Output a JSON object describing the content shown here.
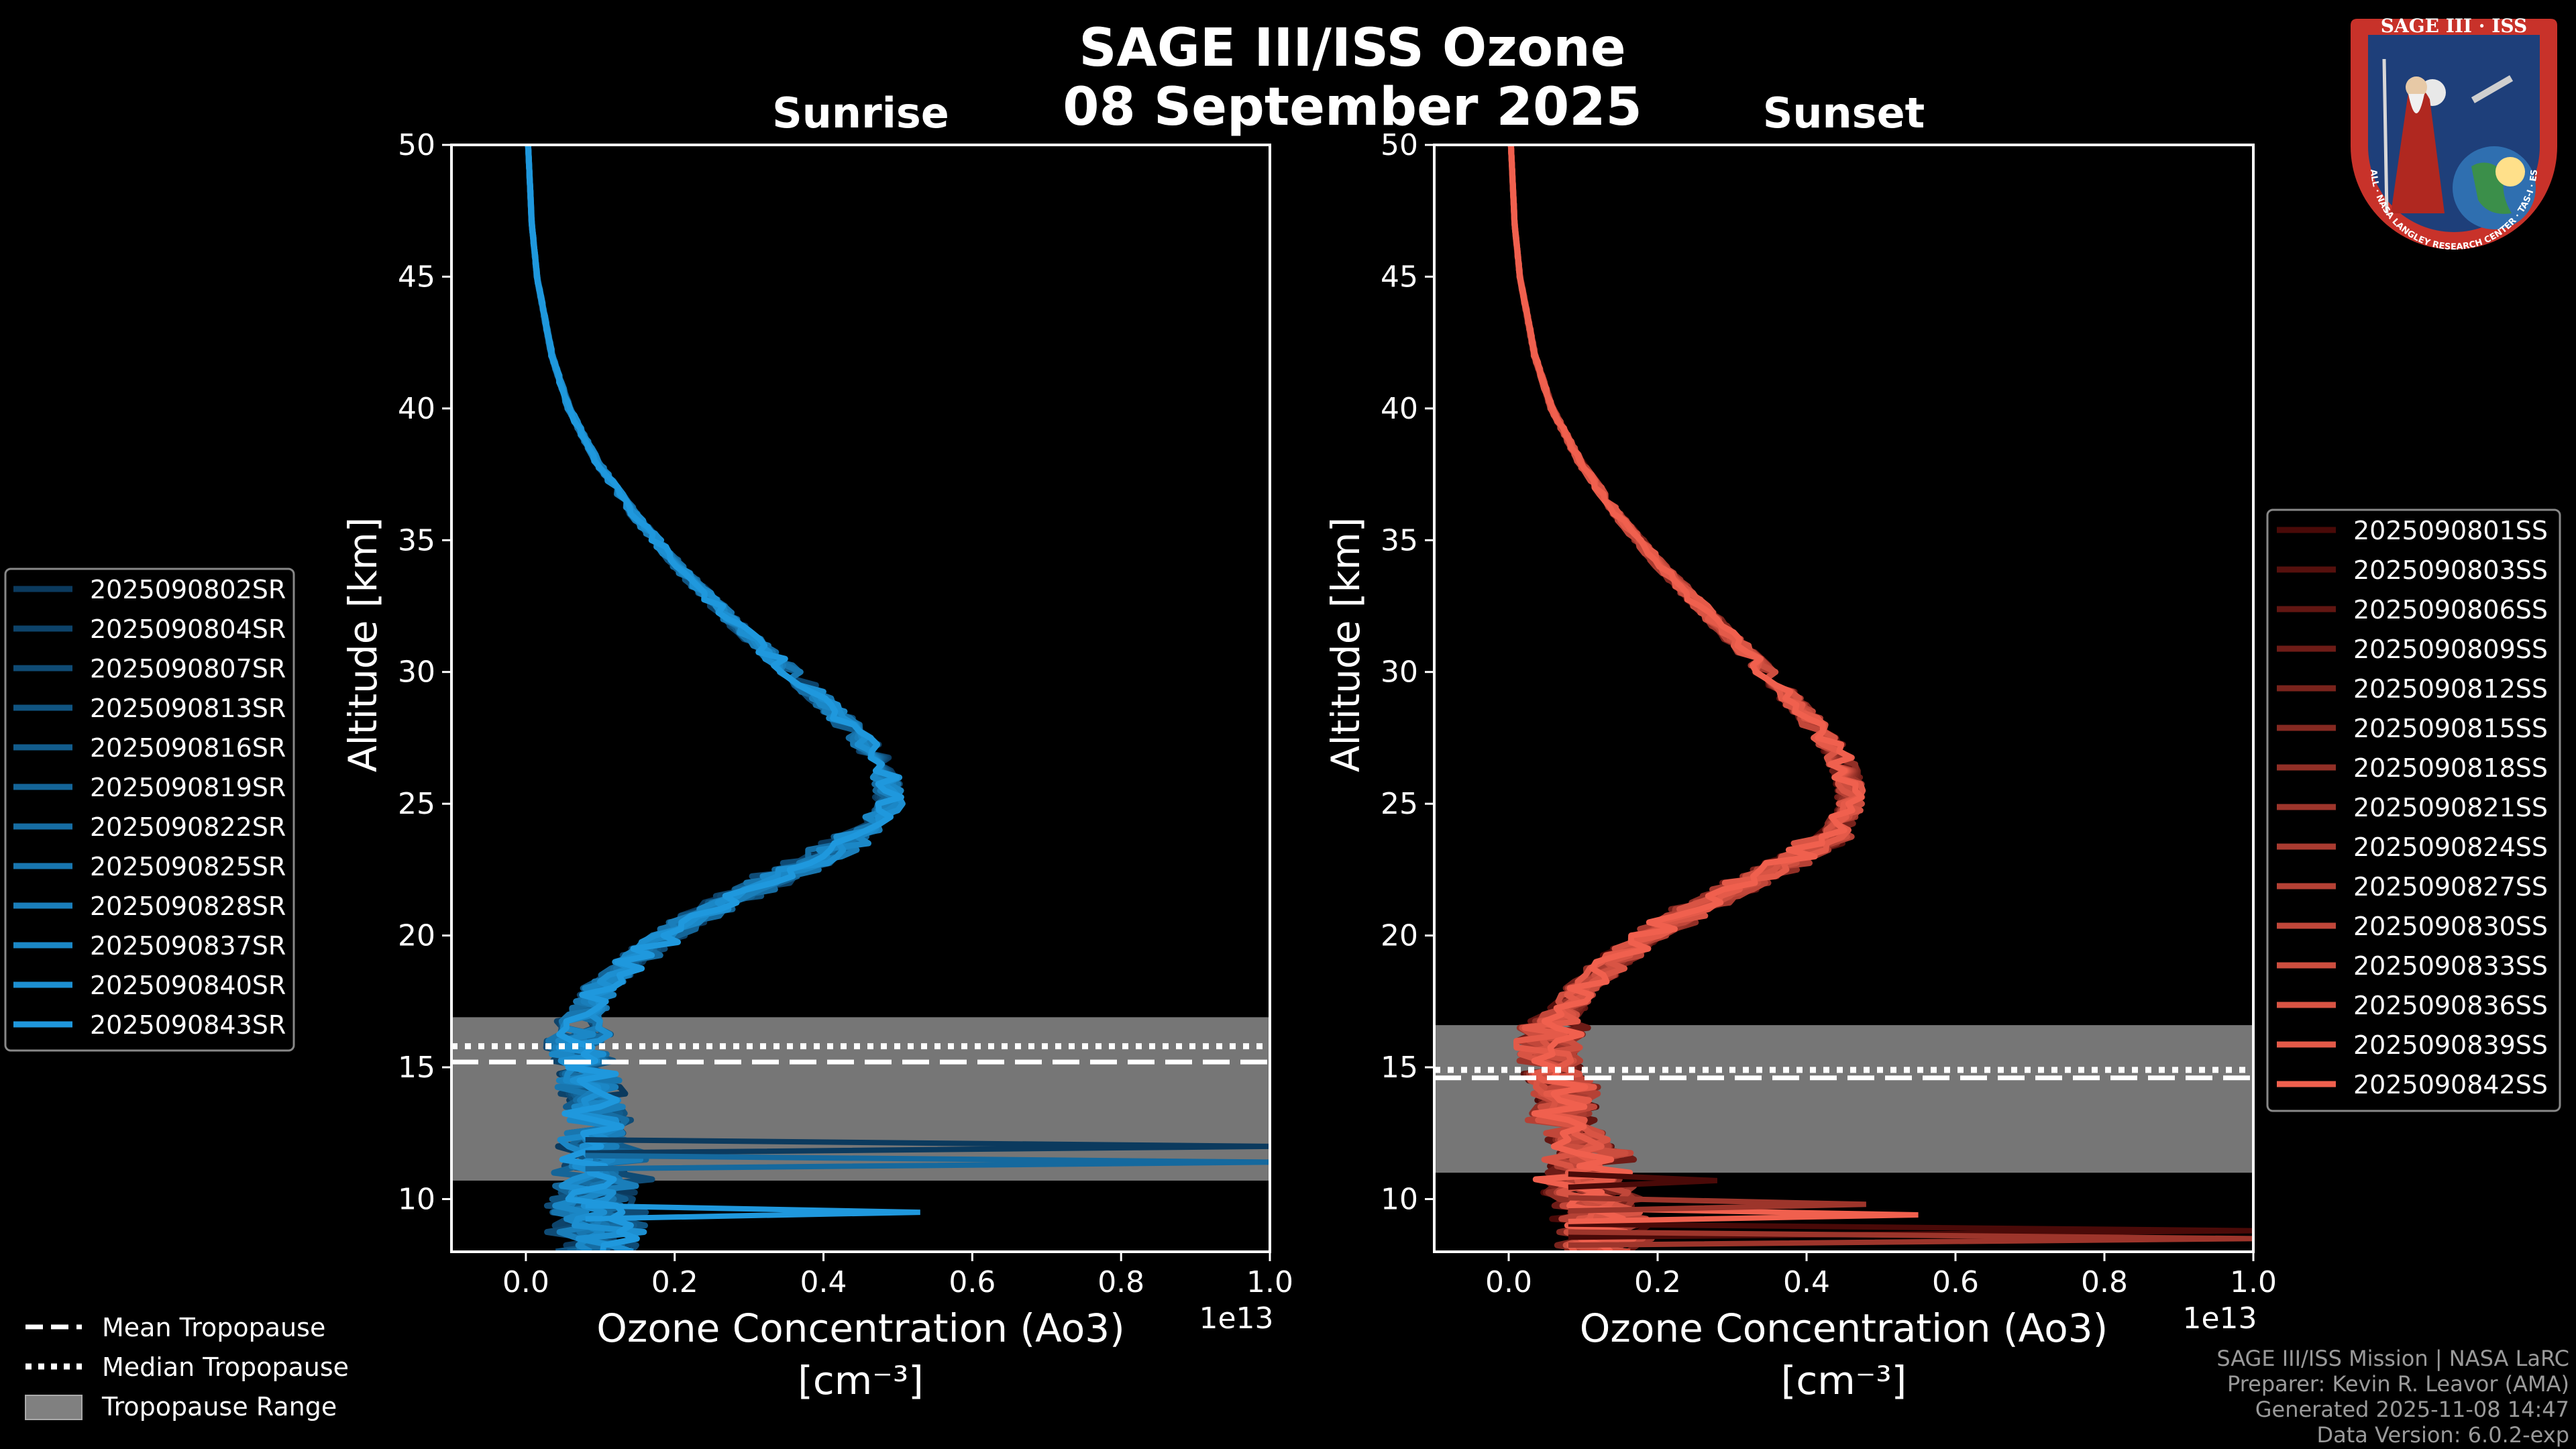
{
  "title": "SAGE III/ISS Ozone",
  "date": "08 September 2025",
  "colors": {
    "background": "#000000",
    "sunrise_base": "#1f8fd0",
    "sunset_base": "#ea5a4a",
    "tropopause_range": "#808080"
  },
  "logo": {
    "top_text": "SAGE III · ISS",
    "ring_text": "BALL · NASA LANGLEY RESEARCH CENTER · TAS-I · ESA"
  },
  "legend_tropopause": {
    "mean": "Mean Tropopause",
    "median": "Median Tropopause",
    "range": "Tropopause Range"
  },
  "footer": {
    "line1": "SAGE III/ISS Mission | NASA LaRC",
    "line2": "Preparer: Kevin R. Leavor (AMA)",
    "line3": "Generated 2025-11-08 14:47",
    "line4": "Data Version: 6.0.2-exp"
  },
  "chart_data": [
    {
      "type": "line",
      "title": "Sunrise",
      "xlabel_line1": "Ozone Concentration (Ao3)",
      "xlabel_line2": "[cm⁻³]",
      "x_multiplier": "1e13",
      "ylabel": "Altitude [km]",
      "xlim": [
        -0.1,
        1.0
      ],
      "ylim": [
        8,
        50
      ],
      "xticks": [
        0.0,
        0.2,
        0.4,
        0.6,
        0.8,
        1.0
      ],
      "xtick_labels": [
        "0.0",
        "0.2",
        "0.4",
        "0.6",
        "0.8",
        "1.0"
      ],
      "yticks": [
        10,
        15,
        20,
        25,
        30,
        35,
        40,
        45,
        50
      ],
      "ytick_labels": [
        "10",
        "15",
        "20",
        "25",
        "30",
        "35",
        "40",
        "45",
        "50"
      ],
      "tropopause": {
        "mean": 15.2,
        "median": 15.8,
        "range": [
          10.7,
          16.9
        ]
      },
      "legend": [
        "2025090802SR",
        "2025090804SR",
        "2025090807SR",
        "2025090813SR",
        "2025090816SR",
        "2025090819SR",
        "2025090822SR",
        "2025090825SR",
        "2025090828SR",
        "2025090837SR",
        "2025090840SR",
        "2025090843SR"
      ],
      "series_profile": {
        "altitude": [
          50,
          47,
          45,
          42,
          40,
          38,
          36,
          34,
          32,
          30,
          28.5,
          27,
          26,
          25,
          24,
          23,
          22,
          21,
          20,
          19,
          18,
          17,
          16,
          15,
          14,
          13,
          12,
          11,
          10,
          9,
          8
        ],
        "mean": [
          0.003,
          0.008,
          0.015,
          0.035,
          0.058,
          0.095,
          0.145,
          0.205,
          0.275,
          0.355,
          0.415,
          0.465,
          0.485,
          0.49,
          0.46,
          0.4,
          0.32,
          0.25,
          0.19,
          0.14,
          0.1,
          0.08,
          0.07,
          0.075,
          0.09,
          0.1,
          0.085,
          0.1,
          0.07,
          0.08,
          0.09
        ]
      },
      "spikes": [
        {
          "alt": 12.0,
          "value": 1.0
        },
        {
          "alt": 11.4,
          "value": 1.0
        },
        {
          "alt": 9.5,
          "value": 0.53
        }
      ]
    },
    {
      "type": "line",
      "title": "Sunset",
      "xlabel_line1": "Ozone Concentration (Ao3)",
      "xlabel_line2": "[cm⁻³]",
      "x_multiplier": "1e13",
      "ylabel": "Altitude [km]",
      "xlim": [
        -0.1,
        1.0
      ],
      "ylim": [
        8,
        50
      ],
      "xticks": [
        0.0,
        0.2,
        0.4,
        0.6,
        0.8,
        1.0
      ],
      "xtick_labels": [
        "0.0",
        "0.2",
        "0.4",
        "0.6",
        "0.8",
        "1.0"
      ],
      "yticks": [
        10,
        15,
        20,
        25,
        30,
        35,
        40,
        45,
        50
      ],
      "ytick_labels": [
        "10",
        "15",
        "20",
        "25",
        "30",
        "35",
        "40",
        "45",
        "50"
      ],
      "tropopause": {
        "mean": 14.6,
        "median": 14.9,
        "range": [
          11.0,
          16.6
        ]
      },
      "legend": [
        "2025090801SS",
        "2025090803SS",
        "2025090806SS",
        "2025090809SS",
        "2025090812SS",
        "2025090815SS",
        "2025090818SS",
        "2025090821SS",
        "2025090824SS",
        "2025090827SS",
        "2025090830SS",
        "2025090833SS",
        "2025090836SS",
        "2025090839SS",
        "2025090842SS"
      ],
      "series_profile": {
        "altitude": [
          50,
          47,
          45,
          42,
          40,
          38,
          36,
          34,
          32,
          30,
          28.5,
          27,
          26,
          25,
          24,
          23,
          22,
          21,
          20,
          19,
          18,
          17,
          16,
          15,
          14,
          13,
          12,
          11,
          10,
          9,
          8
        ],
        "mean": [
          0.003,
          0.008,
          0.015,
          0.035,
          0.058,
          0.095,
          0.145,
          0.205,
          0.275,
          0.345,
          0.395,
          0.44,
          0.455,
          0.46,
          0.44,
          0.39,
          0.32,
          0.25,
          0.19,
          0.14,
          0.1,
          0.07,
          0.05,
          0.06,
          0.08,
          0.07,
          0.1,
          0.08,
          0.1,
          0.12,
          0.1
        ]
      },
      "spikes": [
        {
          "alt": 8.8,
          "value": 1.0
        },
        {
          "alt": 8.5,
          "value": 1.0
        },
        {
          "alt": 9.4,
          "value": 0.55
        },
        {
          "alt": 10.7,
          "value": 0.28
        },
        {
          "alt": 9.8,
          "value": 0.48
        }
      ]
    }
  ]
}
